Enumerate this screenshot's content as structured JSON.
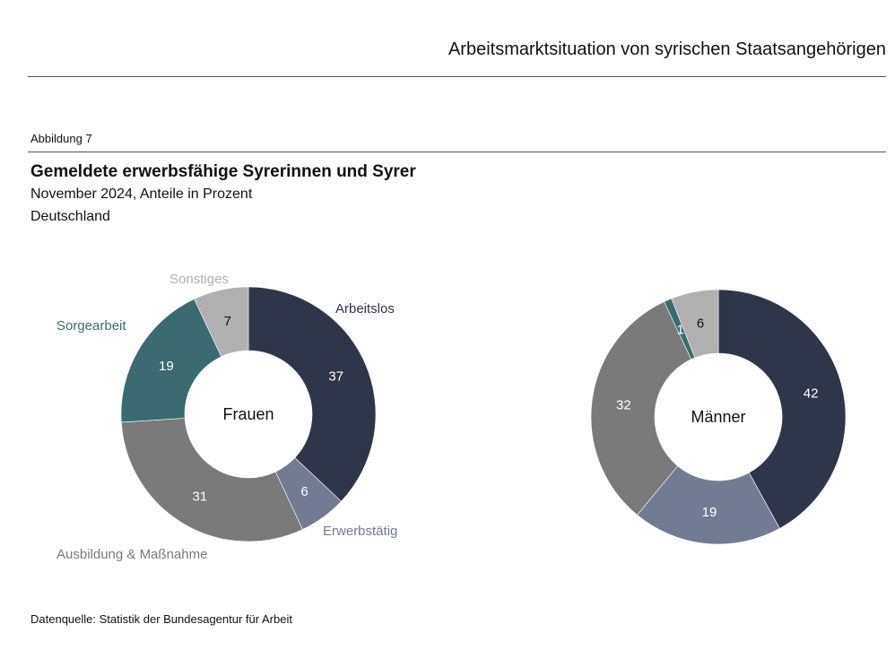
{
  "header": {
    "title": "Arbeitsmarktsituation von syrischen Staatsangehörigen"
  },
  "figure": {
    "number": "Abbildung 7",
    "title": "Gemeldete erwerbsfähige Syrerinnen und Syrer",
    "subtitle": "November 2024, Anteile in Prozent",
    "region": "Deutschland",
    "source": "Datenquelle: Statistik der Bundesagentur für Arbeit"
  },
  "colors": {
    "Arbeitslos": "#30364a",
    "Erwerbstätig": "#727b92",
    "Ausbildung & Maßnahme": "#7a7a7a",
    "Sorgearbeit": "#3b6a71",
    "Sonstiges": "#b0b0b0"
  },
  "chart_data": [
    {
      "type": "pie",
      "variant": "donut",
      "title": "Frauen",
      "labels": [
        "Arbeitslos",
        "Erwerbstätig",
        "Ausbildung & Maßnahme",
        "Sorgearbeit",
        "Sonstiges"
      ],
      "values": [
        37,
        6,
        31,
        19,
        7
      ],
      "category_labels_visible": true
    },
    {
      "type": "pie",
      "variant": "donut",
      "title": "Männer",
      "labels": [
        "Arbeitslos",
        "Erwerbstätig",
        "Ausbildung & Maßnahme",
        "Sorgearbeit",
        "Sonstiges"
      ],
      "values": [
        42,
        19,
        32,
        1,
        6
      ],
      "category_labels_visible": false
    }
  ]
}
